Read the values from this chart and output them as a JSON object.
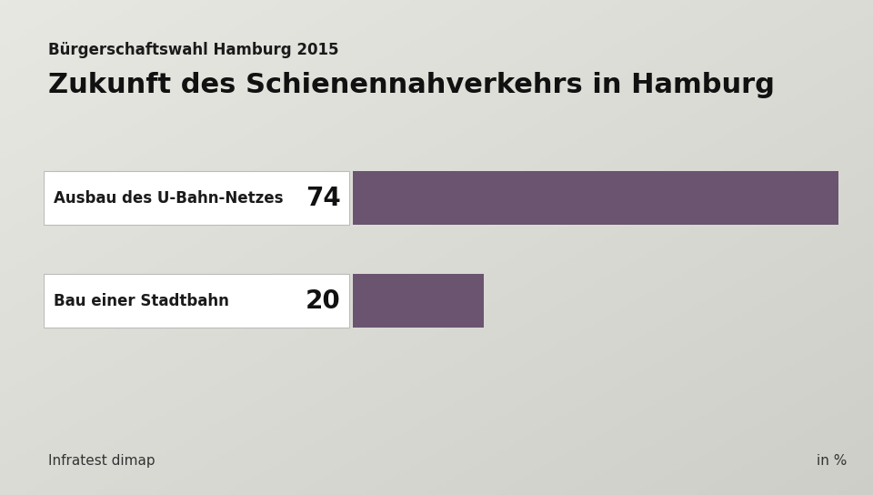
{
  "title": "Zukunft des Schienennahverkehrs in Hamburg",
  "subtitle": "Bürgerschaftswahl Hamburg 2015",
  "categories": [
    "Ausbau des U-Bahn-Netzes",
    "Bau einer Stadtbahn"
  ],
  "values": [
    74,
    20
  ],
  "bar_color": "#6b5470",
  "bg_top_left": "#e8e8e4",
  "bg_bottom_right": "#b8b8b0",
  "source_left": "Infratest dimap",
  "source_right": "in %",
  "title_fontsize": 22,
  "subtitle_fontsize": 12,
  "category_fontsize": 12,
  "value_fontsize": 20,
  "source_fontsize": 11
}
